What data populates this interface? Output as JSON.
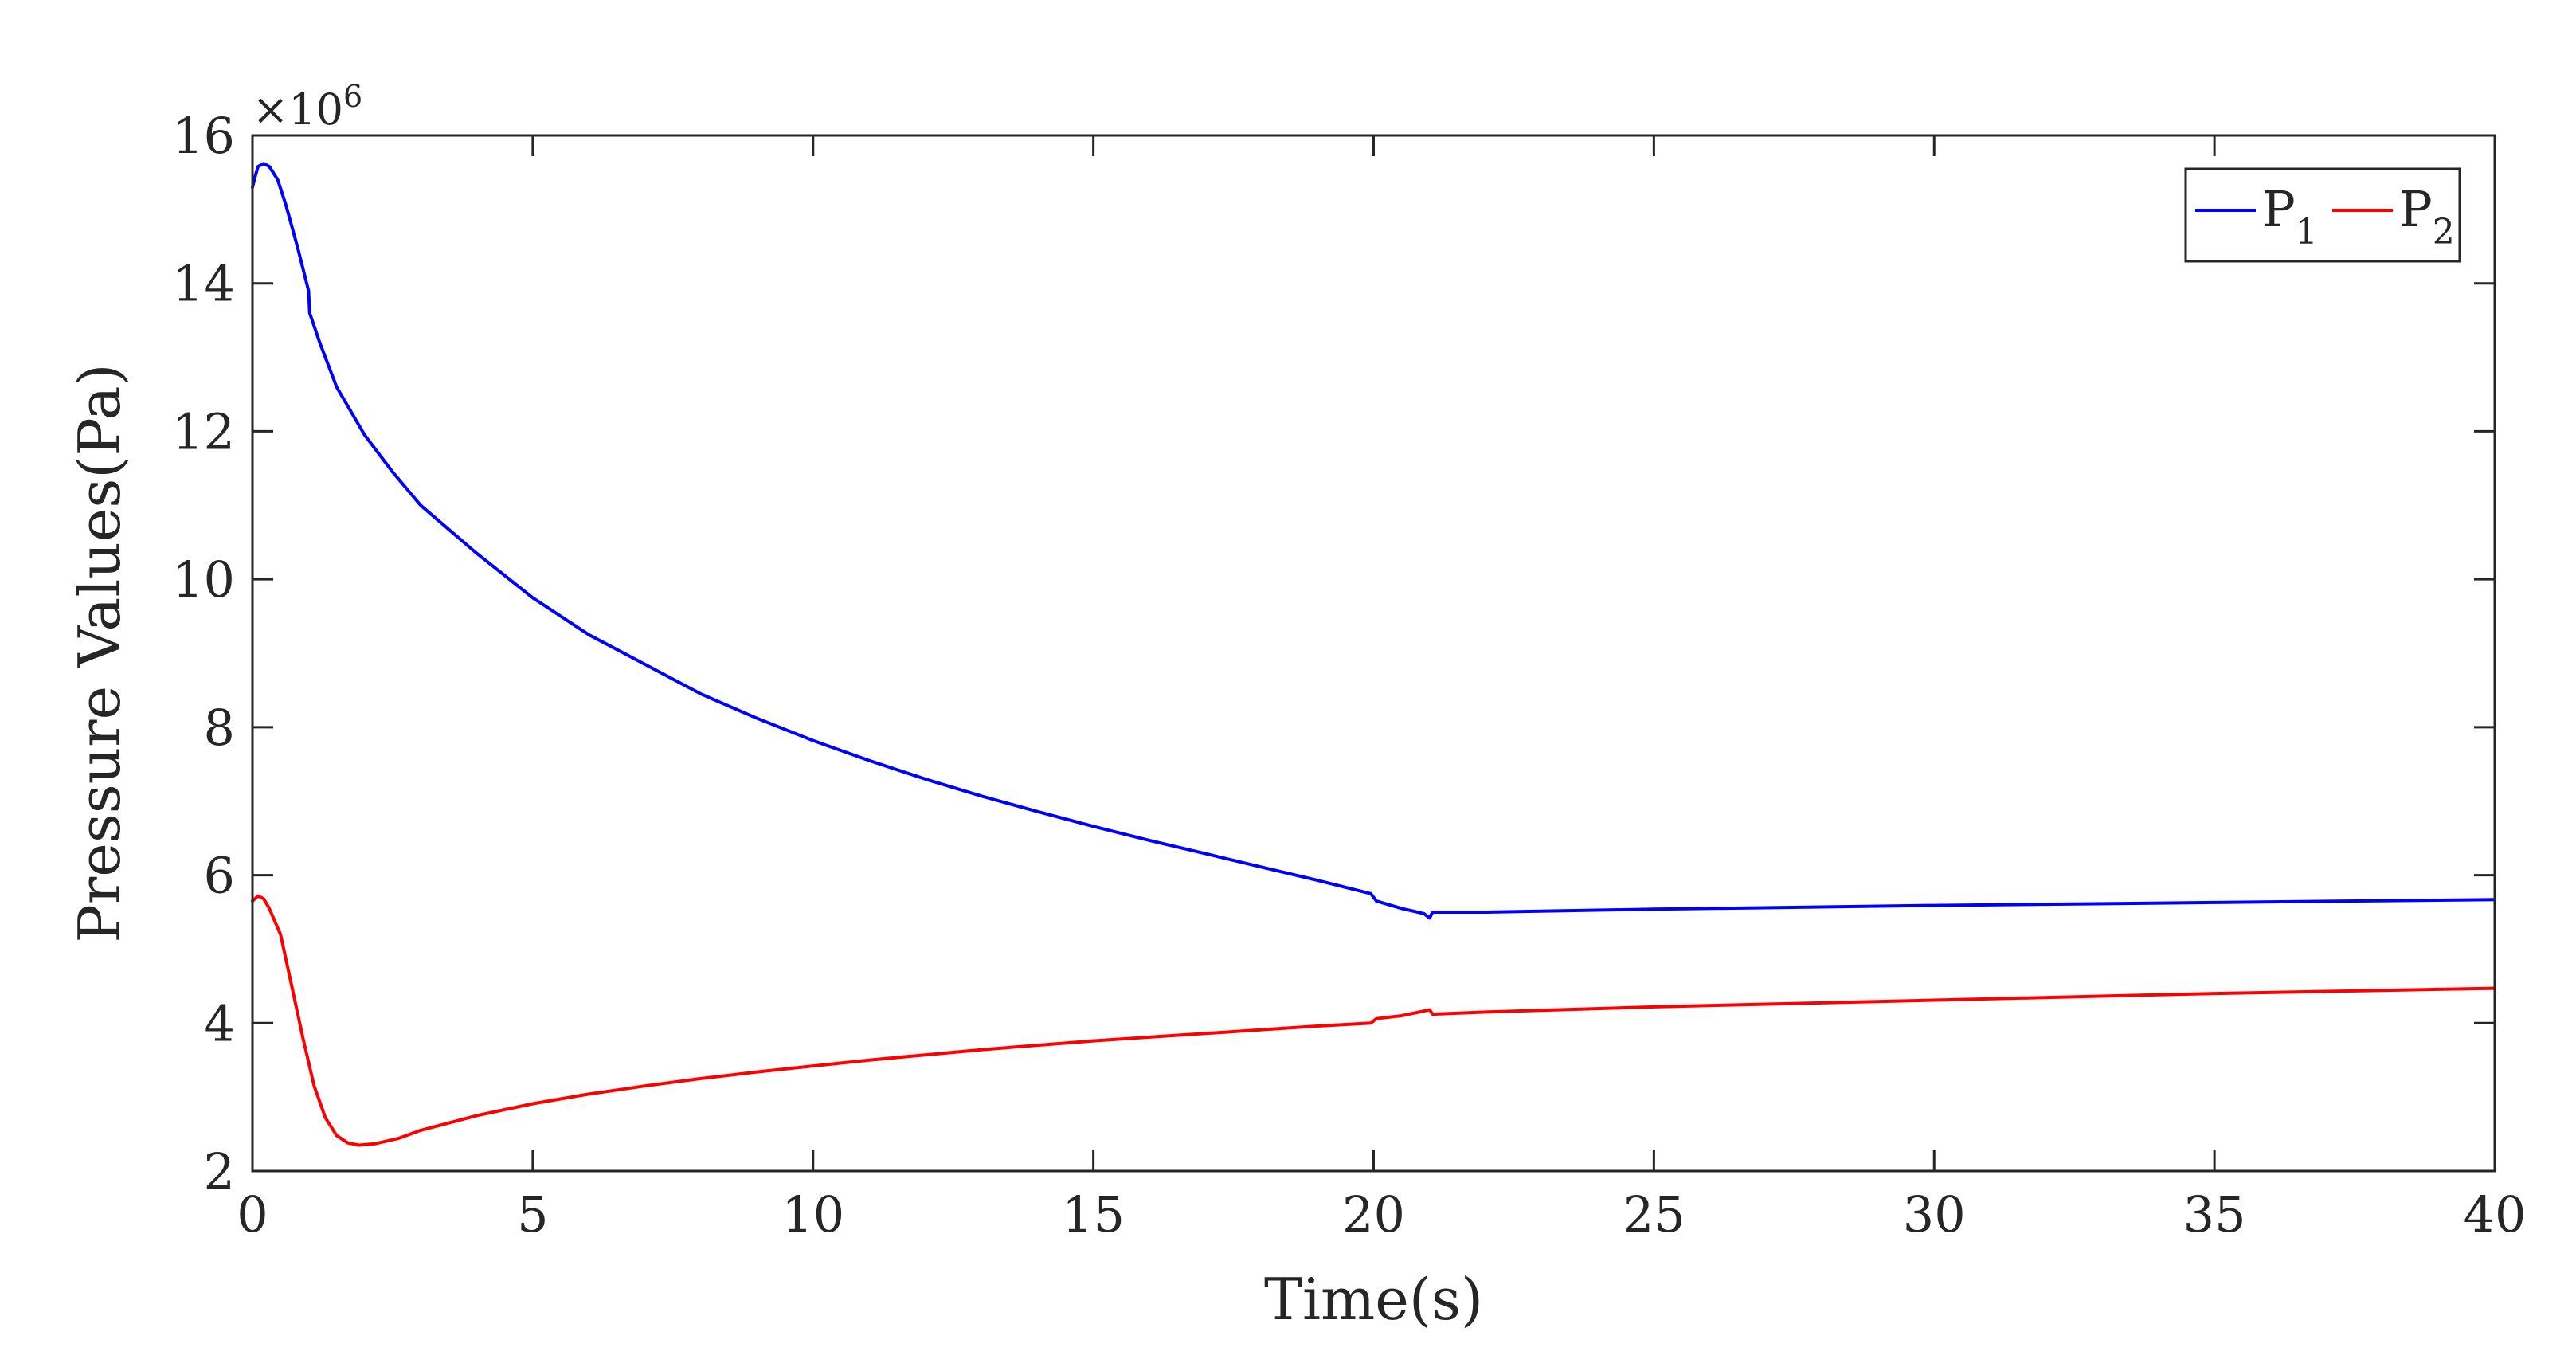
{
  "chart_data": {
    "type": "line",
    "title": "",
    "xlabel": "Time(s)",
    "ylabel": "Pressure Values(Pa)",
    "y_multiplier_base": "×10",
    "y_multiplier_exp": "6",
    "xlim": [
      0,
      40
    ],
    "ylim": [
      2,
      16
    ],
    "xticks": [
      0,
      5,
      10,
      15,
      20,
      25,
      30,
      35,
      40
    ],
    "yticks": [
      2,
      4,
      6,
      8,
      10,
      12,
      14,
      16
    ],
    "grid": false,
    "legend": {
      "placement": "top-right",
      "orientation": "horizontal"
    },
    "series": [
      {
        "name_main": "P",
        "name_sub": "1",
        "color": "#0000ff",
        "points": [
          [
            0,
            15.3
          ],
          [
            0.05,
            15.45
          ],
          [
            0.1,
            15.58
          ],
          [
            0.2,
            15.62
          ],
          [
            0.3,
            15.58
          ],
          [
            0.45,
            15.4
          ],
          [
            0.6,
            15.05
          ],
          [
            0.8,
            14.5
          ],
          [
            1.0,
            13.9
          ],
          [
            1.02,
            13.6
          ],
          [
            1.2,
            13.2
          ],
          [
            1.5,
            12.6
          ],
          [
            2,
            11.95
          ],
          [
            2.5,
            11.45
          ],
          [
            3,
            11.0
          ],
          [
            4,
            10.35
          ],
          [
            5,
            9.75
          ],
          [
            6,
            9.25
          ],
          [
            7,
            8.85
          ],
          [
            8,
            8.45
          ],
          [
            9,
            8.12
          ],
          [
            10,
            7.82
          ],
          [
            11,
            7.55
          ],
          [
            12,
            7.3
          ],
          [
            13,
            7.07
          ],
          [
            14,
            6.86
          ],
          [
            15,
            6.66
          ],
          [
            16,
            6.47
          ],
          [
            17,
            6.29
          ],
          [
            18,
            6.11
          ],
          [
            19,
            5.93
          ],
          [
            19.95,
            5.75
          ],
          [
            20.05,
            5.65
          ],
          [
            20.5,
            5.55
          ],
          [
            20.9,
            5.48
          ],
          [
            21.0,
            5.42
          ],
          [
            21.05,
            5.5
          ],
          [
            22,
            5.5
          ],
          [
            25,
            5.54
          ],
          [
            30,
            5.59
          ],
          [
            35,
            5.63
          ],
          [
            40,
            5.67
          ]
        ]
      },
      {
        "name_main": "P",
        "name_sub": "2",
        "color": "#ff0000",
        "points": [
          [
            0,
            5.65
          ],
          [
            0.1,
            5.72
          ],
          [
            0.2,
            5.68
          ],
          [
            0.3,
            5.55
          ],
          [
            0.5,
            5.2
          ],
          [
            0.7,
            4.5
          ],
          [
            0.9,
            3.8
          ],
          [
            1.1,
            3.15
          ],
          [
            1.3,
            2.72
          ],
          [
            1.5,
            2.48
          ],
          [
            1.7,
            2.38
          ],
          [
            1.9,
            2.35
          ],
          [
            2.2,
            2.37
          ],
          [
            2.6,
            2.44
          ],
          [
            3,
            2.55
          ],
          [
            4,
            2.75
          ],
          [
            5,
            2.91
          ],
          [
            6,
            3.04
          ],
          [
            7,
            3.15
          ],
          [
            8,
            3.25
          ],
          [
            9,
            3.34
          ],
          [
            10,
            3.42
          ],
          [
            11,
            3.5
          ],
          [
            12,
            3.57
          ],
          [
            13,
            3.64
          ],
          [
            14,
            3.7
          ],
          [
            15,
            3.76
          ],
          [
            16,
            3.81
          ],
          [
            17,
            3.86
          ],
          [
            18,
            3.91
          ],
          [
            19,
            3.96
          ],
          [
            19.95,
            4.0
          ],
          [
            20.05,
            4.06
          ],
          [
            20.5,
            4.1
          ],
          [
            21.0,
            4.18
          ],
          [
            21.05,
            4.12
          ],
          [
            22,
            4.15
          ],
          [
            25,
            4.22
          ],
          [
            30,
            4.31
          ],
          [
            35,
            4.4
          ],
          [
            40,
            4.47
          ]
        ]
      }
    ]
  }
}
